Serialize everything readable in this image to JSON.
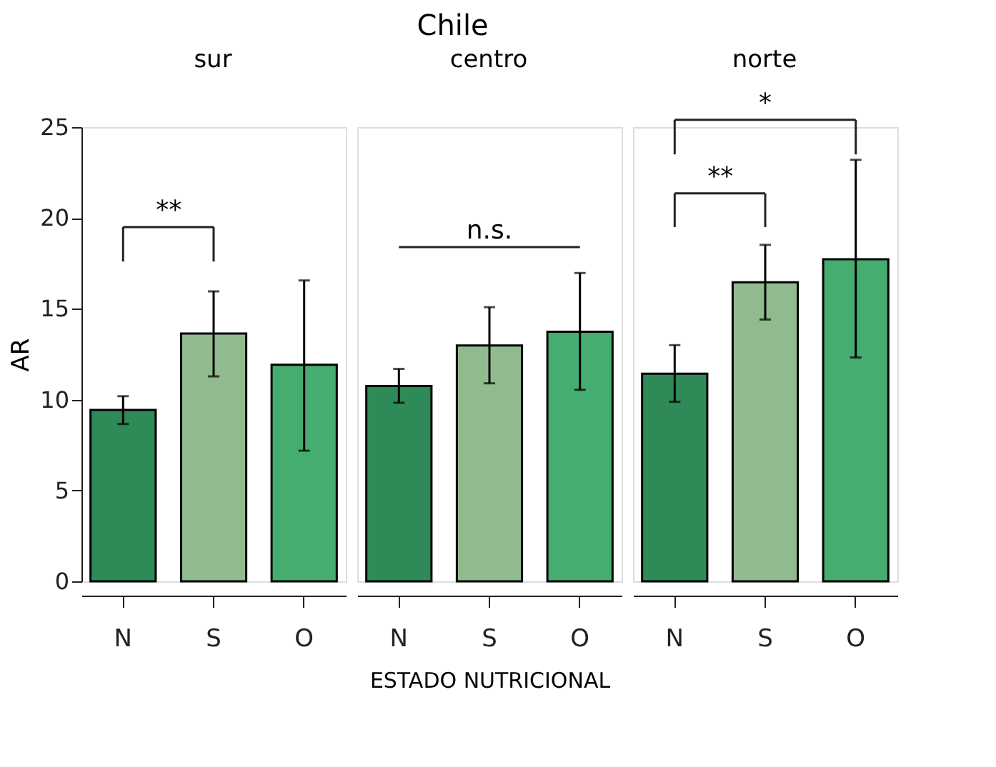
{
  "chart_data": [
    {
      "type": "bar",
      "subtitle": "sur",
      "ylabel": "AR",
      "categories": [
        "N",
        "S",
        "O"
      ],
      "values": [
        9.43,
        13.64,
        11.92
      ],
      "colors": [
        "#2e8a56",
        "#8fbb8f",
        "#45ad6f"
      ],
      "errors": [
        [
          8.66,
          10.19
        ],
        [
          11.28,
          15.96
        ],
        [
          7.19,
          16.56
        ]
      ],
      "ylim": [
        0,
        25
      ],
      "yticks": [
        0,
        5,
        10,
        15,
        20,
        25
      ],
      "grid": false,
      "annotations": [
        "**"
      ]
    },
    {
      "type": "bar",
      "title": "Chile",
      "subtitle": "centro",
      "xlabel": "ESTADO NUTRICIONAL",
      "categories": [
        "N",
        "S",
        "O"
      ],
      "values": [
        10.75,
        12.98,
        13.74
      ],
      "colors": [
        "#2e8a56",
        "#8fbb8f",
        "#45ad6f"
      ],
      "errors": [
        [
          9.83,
          11.69
        ],
        [
          10.9,
          15.09
        ],
        [
          10.54,
          16.97
        ]
      ],
      "ylim": [
        0,
        25
      ],
      "yticks": [
        0,
        5,
        10,
        15,
        20,
        25
      ],
      "tick_labels": "x",
      "grid": false,
      "annotations": [
        "n.s."
      ]
    },
    {
      "type": "bar",
      "subtitle": "norte",
      "categories": [
        "N",
        "S",
        "O"
      ],
      "values": [
        11.43,
        16.46,
        17.73
      ],
      "colors": [
        "#2e8a56",
        "#8fbb8f",
        "#45ad6f"
      ],
      "errors": [
        [
          9.88,
          13.0
        ],
        [
          14.41,
          18.52
        ],
        [
          12.32,
          23.2
        ]
      ],
      "ylim": [
        0,
        25
      ],
      "yticks": [
        0,
        5,
        10,
        15,
        20,
        25
      ],
      "tick_labels": "x",
      "grid": false,
      "annotations": [
        "**",
        "*"
      ]
    }
  ]
}
